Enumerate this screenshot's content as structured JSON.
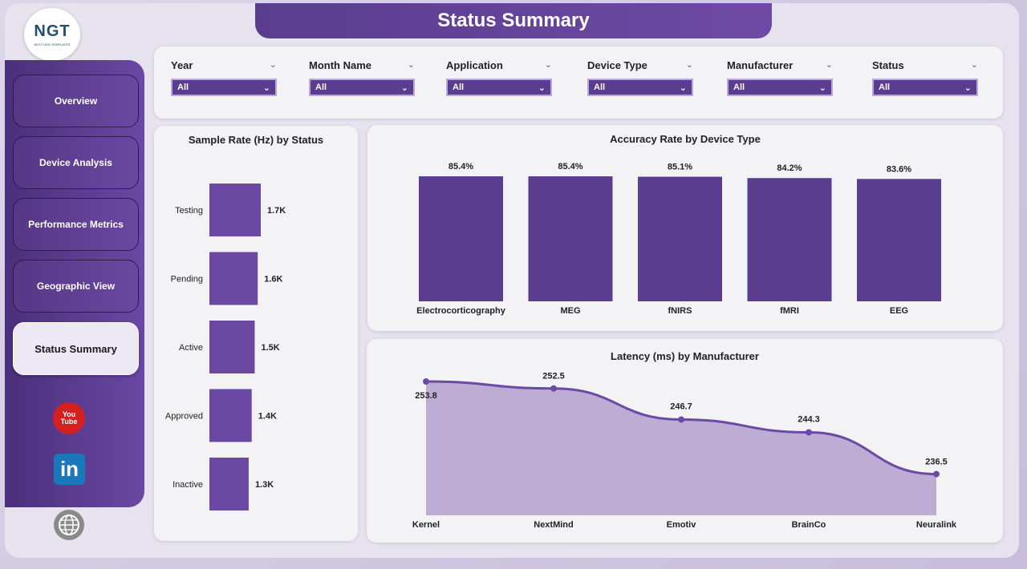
{
  "page": {
    "title": "Status Summary"
  },
  "logo": {
    "text": "NGT",
    "subtitle": "NEXT GEN TEMPLATES"
  },
  "nav": [
    {
      "label": "Overview",
      "active": false
    },
    {
      "label": "Device Analysis",
      "active": false
    },
    {
      "label": "Performance Metrics",
      "active": false
    },
    {
      "label": "Geographic View",
      "active": false
    },
    {
      "label": "Status Summary",
      "active": true
    }
  ],
  "social": {
    "youtube_top": "You",
    "youtube_bottom": "Tube",
    "linkedin": "in"
  },
  "filters": [
    {
      "label": "Year",
      "value": "All"
    },
    {
      "label": "Month Name",
      "value": "All"
    },
    {
      "label": "Application",
      "value": "All"
    },
    {
      "label": "Device Type",
      "value": "All"
    },
    {
      "label": "Manufacturer",
      "value": "All"
    },
    {
      "label": "Status",
      "value": "All"
    }
  ],
  "colors": {
    "accent": "#5a3d8e",
    "bar": "#5a3d8e",
    "bar_light": "#6a48a4",
    "area": "#b9a8d2",
    "line": "#6b4aa5"
  },
  "chart_data": [
    {
      "type": "bar",
      "orientation": "horizontal",
      "title": "Sample Rate (Hz) by Status",
      "categories": [
        "Testing",
        "Pending",
        "Active",
        "Approved",
        "Inactive"
      ],
      "values": [
        1700,
        1600,
        1500,
        1400,
        1300
      ],
      "data_labels": [
        "1.7K",
        "1.6K",
        "1.5K",
        "1.4K",
        "1.3K"
      ]
    },
    {
      "type": "bar",
      "title": "Accuracy Rate by Device Type",
      "categories": [
        "Electrocorticography",
        "MEG",
        "fNIRS",
        "fMRI",
        "EEG"
      ],
      "values": [
        85.4,
        85.4,
        85.1,
        84.2,
        83.6
      ],
      "data_labels": [
        "85.4%",
        "85.4%",
        "85.1%",
        "84.2%",
        "83.6%"
      ]
    },
    {
      "type": "area",
      "title": "Latency (ms) by Manufacturer",
      "categories": [
        "Kernel",
        "NextMind",
        "Emotiv",
        "BrainCo",
        "Neuralink"
      ],
      "values": [
        253.8,
        252.5,
        246.7,
        244.3,
        236.5
      ],
      "data_labels": [
        "253.8",
        "252.5",
        "246.7",
        "244.3",
        "236.5"
      ],
      "ylim": [
        230,
        255
      ]
    }
  ]
}
